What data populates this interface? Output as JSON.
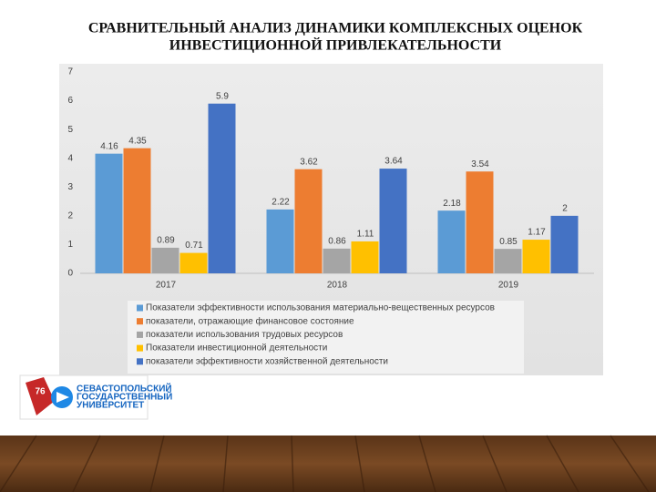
{
  "title": [
    "СРАВНИТЕЛЬНЫЙ АНАЛИЗ ДИНАМИКИ КОМПЛЕКСНЫХ ОЦЕНОК",
    "ИНВЕСТИЦИОННОЙ ПРИВЛЕКАТЕЛЬНОСТИ"
  ],
  "logo": {
    "badge": "76",
    "lines": [
      "СЕВАСТОПОЛЬСКИЙ",
      "ГОСУДАРСТВЕННЫЙ",
      "УНИВЕРСИТЕТ"
    ]
  },
  "chart_data": {
    "type": "bar",
    "categories": [
      "2017",
      "2018",
      "2019"
    ],
    "series": [
      {
        "name": "Показатели эффективности использования материально-вещественных ресурсов",
        "color": "#5b9bd5",
        "values": [
          4.16,
          2.22,
          2.18
        ]
      },
      {
        "name": "показатели, отражающие финансовое состояние",
        "color": "#ed7d31",
        "values": [
          4.35,
          3.62,
          3.54
        ]
      },
      {
        "name": "показатели использования трудовых ресурсов",
        "color": "#a5a5a5",
        "values": [
          0.89,
          0.86,
          0.85
        ]
      },
      {
        "name": "Показатели инвестиционной деятельности",
        "color": "#ffc000",
        "values": [
          0.71,
          1.11,
          1.17
        ]
      },
      {
        "name": "показатели эффективности хозяйственной деятельности",
        "color": "#4472c4",
        "values": [
          5.9,
          3.64,
          2
        ]
      }
    ],
    "ylim": [
      0,
      7
    ],
    "yticks": [
      0,
      1,
      2,
      3,
      4,
      5,
      6,
      7
    ],
    "grid": false,
    "legend": "bottom"
  }
}
